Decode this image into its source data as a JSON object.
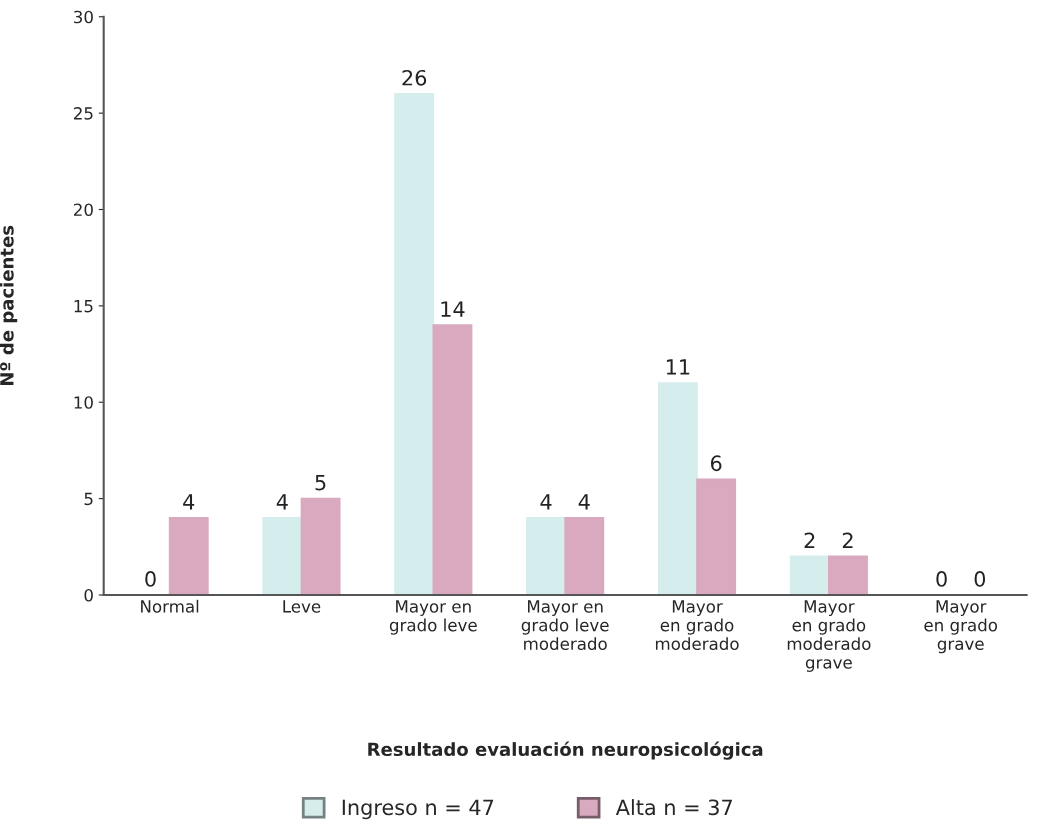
{
  "chart_data": {
    "type": "bar",
    "xlabel": "Resultado evaluación neuropsicológica",
    "ylabel": "Nº de pacientes",
    "categories": [
      "Normal",
      "Leve",
      "Mayor en\ngrado leve",
      "Mayor en\ngrado leve\nmoderado",
      "Mayor\nen grado\nmoderado",
      "Mayor\nen grado\nmoderado\ngrave",
      "Mayor\nen grado\ngrave"
    ],
    "series": [
      {
        "name": "Ingreso n = 47",
        "color": "#d5eded",
        "values": [
          0,
          4,
          26,
          4,
          11,
          2,
          0
        ]
      },
      {
        "name": "Alta n = 37",
        "color": "#d8a9bf",
        "values": [
          4,
          5,
          14,
          4,
          6,
          2,
          0
        ]
      }
    ],
    "ylim": [
      0,
      30
    ],
    "yticks": [
      0,
      5,
      10,
      15,
      20,
      25,
      30
    ],
    "data_labels": true,
    "grid": false,
    "legend": "bottom"
  }
}
